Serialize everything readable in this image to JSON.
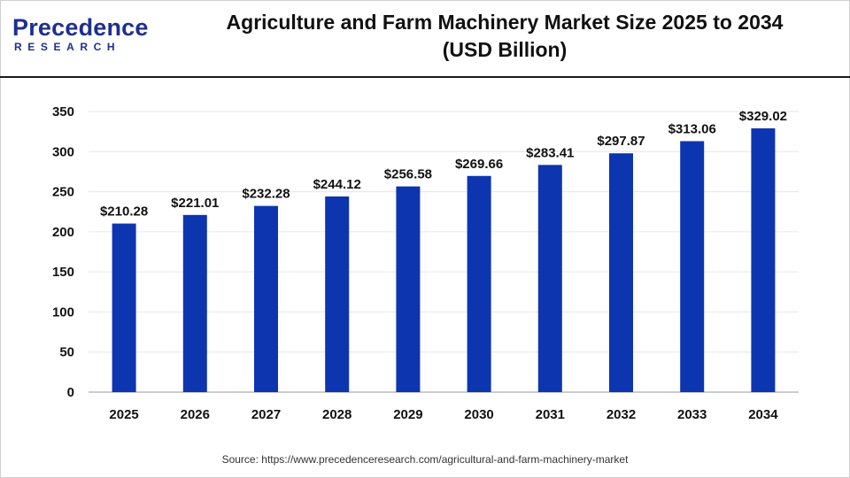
{
  "brand": {
    "logo_top": "Precedence",
    "logo_bottom": "RESEARCH",
    "color": "#1e2f8f"
  },
  "chart_data": {
    "type": "bar",
    "title_line1": "Agriculture and Farm Machinery Market Size 2025 to 2034",
    "title_line2": "(USD Billion)",
    "categories": [
      "2025",
      "2026",
      "2027",
      "2028",
      "2029",
      "2030",
      "2031",
      "2032",
      "2033",
      "2034"
    ],
    "values": [
      210.28,
      221.01,
      232.28,
      244.12,
      256.58,
      269.66,
      283.41,
      297.87,
      313.06,
      329.02
    ],
    "data_labels": [
      "$210.28",
      "$221.01",
      "$232.28",
      "$244.12",
      "$256.58",
      "$269.66",
      "$283.41",
      "$297.87",
      "$313.06",
      "$329.02"
    ],
    "yticks": [
      "0",
      "50",
      "100",
      "150",
      "200",
      "250",
      "300",
      "350"
    ],
    "ylim": [
      0,
      350
    ],
    "grid": true,
    "bar_color": "#0e35b0"
  },
  "source": "Source: https://www.precedenceresearch.com/agricultural-and-farm-machinery-market"
}
